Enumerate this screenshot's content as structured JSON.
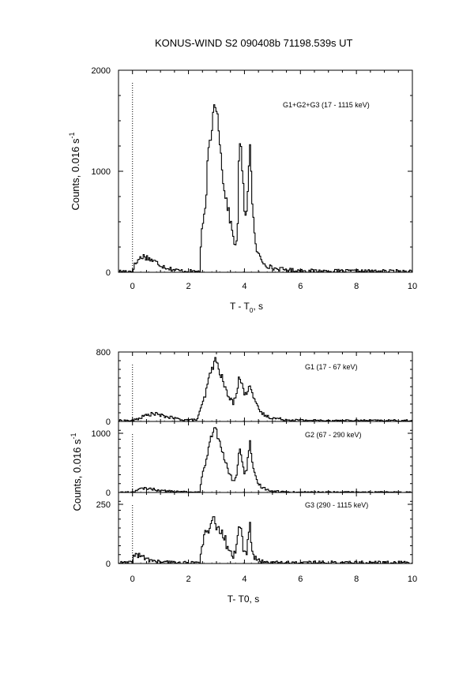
{
  "title": "KONUS-WIND  S2  090408b  71198.539s UT",
  "chart_data": [
    {
      "type": "line",
      "panel": "top",
      "title": "KONUS-WIND  S2  090408b  71198.539s UT",
      "label": "G1+G2+G3 (17 - 1115 keV)",
      "xlabel_main": "T - T",
      "xlabel_sub": "0",
      "xlabel_suffix": ", s",
      "ylabel_main": "Counts, 0.016 s",
      "ylabel_sup": "-1",
      "xlim": [
        -0.5,
        10
      ],
      "ylim": [
        0,
        2000
      ],
      "x_ticks": [
        0,
        2,
        4,
        6,
        8,
        10
      ],
      "y_ticks": [
        0,
        1000,
        2000
      ],
      "x_tick_labels": [
        "0",
        "2",
        "4",
        "6",
        "8",
        "10"
      ],
      "y_tick_labels": [
        "0",
        "1000",
        "2000"
      ],
      "background": 10,
      "noise": 12,
      "series": [
        {
          "name": "G1+G2+G3",
          "x": [
            -0.5,
            0.0,
            0.05,
            0.2,
            0.35,
            0.5,
            0.7,
            0.9,
            1.1,
            1.3,
            1.5,
            1.7,
            2.0,
            2.4,
            2.45,
            2.5,
            2.6,
            2.7,
            2.75,
            2.8,
            2.85,
            2.9,
            2.95,
            3.0,
            3.05,
            3.1,
            3.15,
            3.2,
            3.3,
            3.4,
            3.5,
            3.6,
            3.7,
            3.75,
            3.8,
            3.85,
            3.9,
            3.95,
            4.0,
            4.05,
            4.1,
            4.15,
            4.2,
            4.25,
            4.3,
            4.35,
            4.4,
            4.5,
            4.6,
            4.8,
            5.0,
            5.5,
            6.0,
            7.0,
            8.0,
            10.0
          ],
          "y": [
            10,
            10,
            60,
            120,
            160,
            150,
            120,
            90,
            60,
            40,
            25,
            15,
            10,
            10,
            300,
            450,
            600,
            1150,
            1250,
            1300,
            1500,
            1600,
            1700,
            1650,
            1550,
            1400,
            1200,
            1000,
            800,
            650,
            500,
            350,
            250,
            320,
            1150,
            1250,
            1150,
            900,
            600,
            500,
            700,
            1050,
            1270,
            900,
            600,
            400,
            250,
            180,
            120,
            70,
            40,
            25,
            15,
            12,
            10,
            10
          ]
        }
      ]
    },
    {
      "type": "line",
      "panel": "G1",
      "label": "G1 (17 - 67 keV)",
      "xlim": [
        -0.5,
        10
      ],
      "ylim": [
        0,
        800
      ],
      "y_ticks": [
        0,
        800
      ],
      "y_tick_labels": [
        "0",
        "800"
      ],
      "background": 10,
      "noise": 6,
      "series": [
        {
          "name": "G1",
          "x": [
            -0.5,
            0.0,
            0.2,
            0.4,
            0.6,
            0.8,
            1.0,
            1.3,
            1.6,
            2.0,
            2.3,
            2.4,
            2.5,
            2.6,
            2.7,
            2.8,
            2.9,
            2.95,
            3.0,
            3.1,
            3.2,
            3.3,
            3.4,
            3.5,
            3.6,
            3.7,
            3.75,
            3.8,
            3.85,
            3.9,
            3.95,
            4.0,
            4.05,
            4.1,
            4.15,
            4.2,
            4.25,
            4.3,
            4.4,
            4.5,
            4.6,
            4.8,
            5.0,
            5.5,
            6.0,
            7.0,
            10.0
          ],
          "y": [
            10,
            10,
            30,
            60,
            80,
            90,
            70,
            50,
            30,
            15,
            20,
            100,
            200,
            300,
            450,
            580,
            660,
            700,
            680,
            600,
            500,
            400,
            300,
            250,
            220,
            320,
            400,
            480,
            500,
            450,
            380,
            320,
            300,
            350,
            420,
            440,
            380,
            300,
            200,
            150,
            100,
            60,
            40,
            20,
            15,
            10,
            10
          ]
        }
      ]
    },
    {
      "type": "line",
      "panel": "G2",
      "label": "G2 (67 - 290 keV)",
      "ylabel_main": "Counts, 0.016 s",
      "ylabel_sup": "-1",
      "xlim": [
        -0.5,
        10
      ],
      "ylim": [
        0,
        1200
      ],
      "y_ticks": [
        0,
        1000
      ],
      "y_tick_labels": [
        "0",
        "1000"
      ],
      "background": 5,
      "noise": 8,
      "series": [
        {
          "name": "G2",
          "x": [
            -0.5,
            0.0,
            0.1,
            0.3,
            0.5,
            0.7,
            0.9,
            1.2,
            1.5,
            2.0,
            2.4,
            2.45,
            2.5,
            2.6,
            2.7,
            2.75,
            2.8,
            2.85,
            2.9,
            2.95,
            3.0,
            3.05,
            3.1,
            3.2,
            3.3,
            3.4,
            3.5,
            3.6,
            3.7,
            3.75,
            3.8,
            3.85,
            3.9,
            3.95,
            4.0,
            4.05,
            4.1,
            4.15,
            4.2,
            4.25,
            4.3,
            4.4,
            4.5,
            4.6,
            4.8,
            5.0,
            5.5,
            6.0,
            10.0
          ],
          "y": [
            5,
            5,
            30,
            60,
            70,
            60,
            40,
            25,
            15,
            8,
            8,
            200,
            300,
            450,
            700,
            800,
            900,
            1000,
            1050,
            1080,
            1020,
            950,
            850,
            700,
            550,
            400,
            280,
            200,
            250,
            400,
            650,
            700,
            600,
            450,
            350,
            330,
            450,
            700,
            850,
            600,
            400,
            250,
            150,
            100,
            50,
            25,
            10,
            5,
            5
          ]
        }
      ]
    },
    {
      "type": "line",
      "panel": "G3",
      "label": "G3 (290 - 1115 keV)",
      "xlabel": "T- T0, s",
      "xlim": [
        -0.5,
        10
      ],
      "ylim": [
        0,
        300
      ],
      "y_ticks": [
        0,
        250
      ],
      "y_tick_labels": [
        "0",
        "250"
      ],
      "x_ticks": [
        0,
        2,
        4,
        6,
        8,
        10
      ],
      "x_tick_labels": [
        "0",
        "2",
        "4",
        "6",
        "8",
        "10"
      ],
      "background": 3,
      "noise": 4,
      "series": [
        {
          "name": "G3",
          "x": [
            -0.5,
            0.0,
            0.05,
            0.15,
            0.3,
            0.5,
            0.7,
            1.0,
            1.5,
            2.0,
            2.4,
            2.45,
            2.5,
            2.6,
            2.65,
            2.7,
            2.75,
            2.8,
            2.85,
            2.9,
            2.95,
            3.0,
            3.05,
            3.1,
            3.15,
            3.2,
            3.3,
            3.4,
            3.5,
            3.6,
            3.7,
            3.75,
            3.8,
            3.85,
            3.9,
            3.95,
            4.0,
            4.05,
            4.1,
            4.15,
            4.2,
            4.25,
            4.3,
            4.4,
            4.5,
            4.6,
            4.8,
            5.0,
            10.0
          ],
          "y": [
            3,
            3,
            45,
            35,
            30,
            20,
            12,
            6,
            4,
            3,
            3,
            60,
            90,
            120,
            140,
            110,
            130,
            160,
            175,
            190,
            170,
            150,
            165,
            120,
            100,
            130,
            110,
            60,
            40,
            35,
            60,
            120,
            160,
            150,
            130,
            60,
            45,
            40,
            60,
            130,
            180,
            90,
            40,
            20,
            12,
            8,
            5,
            4,
            3
          ]
        }
      ]
    }
  ]
}
